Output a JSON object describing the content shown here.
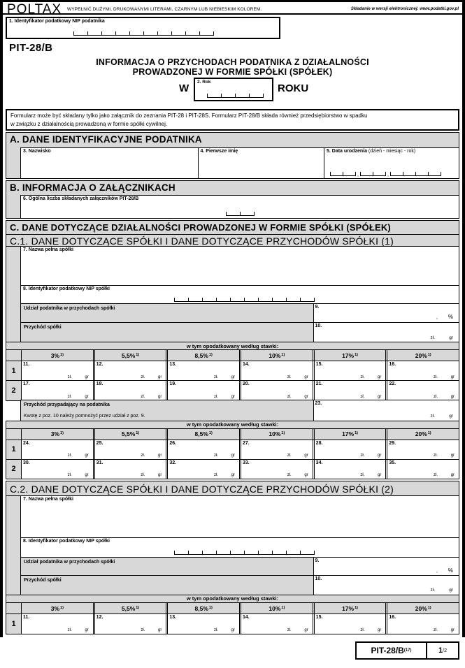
{
  "header": {
    "brand": "POLTAX",
    "instruction": "WYPEŁNIĆ DUŻYMI, DRUKOWANYMI LITERAMI, CZARNYM LUB NIEBIESKIM KOLOREM.",
    "efiling": "Składanie w wersji elektronicznej: www.podatki.gov.pl"
  },
  "field1": {
    "label": "1. Identyfikator podatkowy NIP podatnika"
  },
  "form": {
    "code": "PIT-28/B",
    "title_line1": "INFORMACJA O PRZYCHODACH PODATNIKA Z DZIAŁALNOŚCI",
    "title_line2": "PROWADZONEJ W FORMIE SPÓŁKI (SPÓŁEK)",
    "year_prefix": "W",
    "year_box_label": "2. Rok",
    "year_suffix": "ROKU"
  },
  "notice": {
    "line1": "Formularz może być składany tylko jako załącznik do zeznania PIT-28 i PIT-28S. Formularz PIT-28/B składa również przedsiębiorstwo w spadku",
    "line2": "w związku z działalnością prowadzoną w formie spółki cywilnej."
  },
  "secA": {
    "title": "A. DANE IDENTYFIKACYJNE PODATNIKA",
    "f3": "3. Nazwisko",
    "f4": "4. Pierwsze imię",
    "f5": "5. Data urodzenia",
    "f5_hint": "(dzień - miesiąc - rok)"
  },
  "secB": {
    "title": "B. INFORMACJA O ZAŁĄCZNIKACH",
    "f6": "6. Ogólna liczba składanych załączników PIT-28/B"
  },
  "secC": {
    "title": "C. DANE DOTYCZĄCE DZIAŁALNOŚCI PROWADZONEJ W FORMIE SPÓŁKI (SPÓŁEK)"
  },
  "c1": {
    "title": "C.1. DANE DOTYCZĄCE SPÓŁKI I DANE DOTYCZĄCE PRZYCHODÓW SPÓŁKI (1)"
  },
  "c2": {
    "title": "C.2. DANE DOTYCZĄCE SPÓŁKI I DANE DOTYCZĄCE PRZYCHODÓW SPÓŁKI (2)"
  },
  "company": {
    "f7": "7. Nazwa pełna spółki",
    "f8": "8. Identyfikator podatkowy NIP spółki",
    "share_label": "Udział podatnika w przychodach spółki",
    "share_no": "9.",
    "revenue_label": "Przychód spółki",
    "revenue_no": "10.",
    "taxpayer_label": "Przychód przypadający na podatnika",
    "taxpayer_note": "Kwotę z poz. 10 należy pomnożyć przez udział z poz. 9.",
    "taxpayer_no": "23."
  },
  "stakes": {
    "bar": "w tym opodatkowany według stawki:",
    "rates": [
      "3%",
      "5,5%",
      "8,5%",
      "10%",
      "17%",
      "20%"
    ],
    "sup": "1)",
    "rows": [
      "1",
      "2"
    ]
  },
  "cells": {
    "c1t1r1": [
      "11.",
      "12.",
      "13.",
      "14.",
      "15.",
      "16."
    ],
    "c1t1r2": [
      "17.",
      "18.",
      "19.",
      "20.",
      "21.",
      "22."
    ],
    "c1t2r1": [
      "24.",
      "25.",
      "26.",
      "27.",
      "28.",
      "29."
    ],
    "c1t2r2": [
      "30.",
      "31.",
      "32.",
      "33.",
      "34.",
      "35."
    ],
    "c2t1r1": [
      "11.",
      "12.",
      "13.",
      "14.",
      "15.",
      "16."
    ]
  },
  "units": {
    "zl": "zł.",
    "gr": "gr",
    "percent": "%",
    "comma": ","
  },
  "footer": {
    "code": "PIT-28/B",
    "version": "(17)",
    "page": "1",
    "of": "/2"
  },
  "colors": {
    "section_gray": "#d8d8d8",
    "ink": "#000000",
    "paper": "#ffffff"
  }
}
